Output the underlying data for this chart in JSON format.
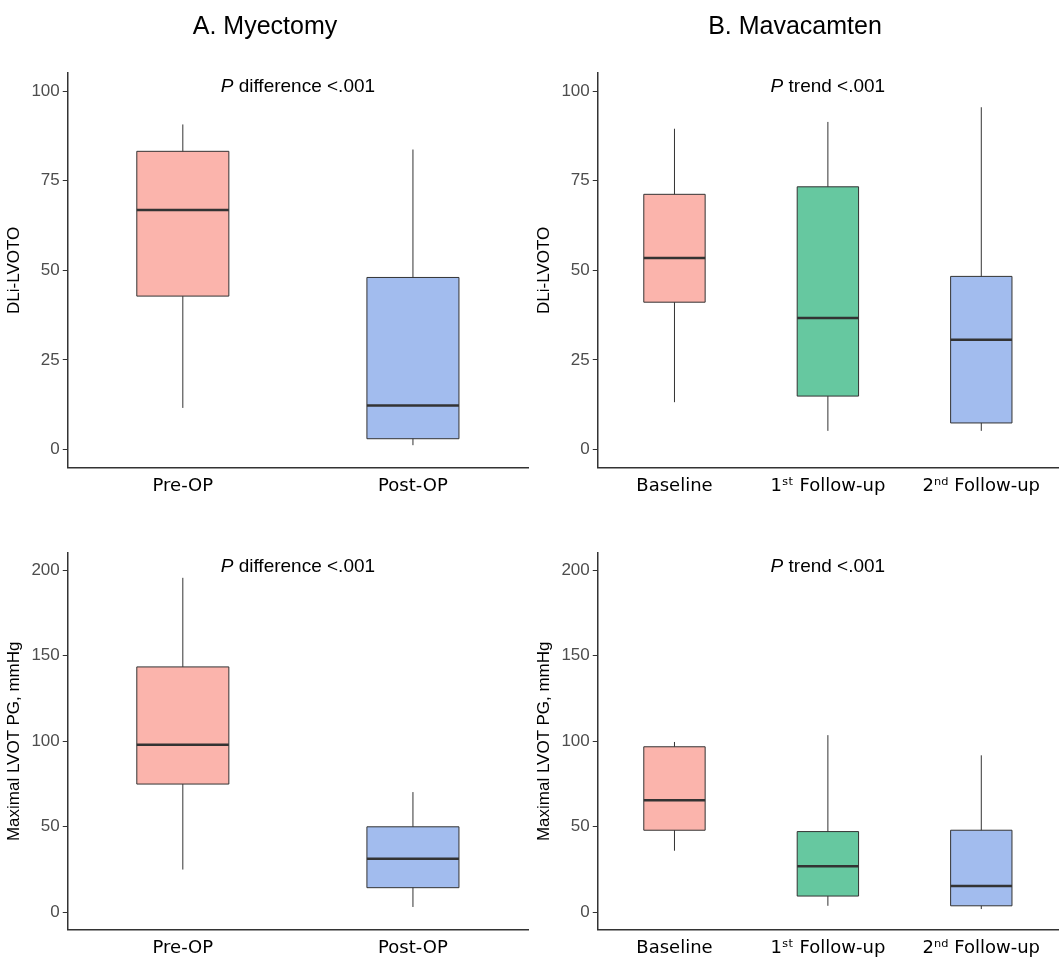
{
  "chart_data": [
    {
      "type": "box",
      "title": "A. Myectomy",
      "ylabel": "DLi-LVOTO",
      "categories": [
        "Pre-OP",
        "Post-OP"
      ],
      "colors": [
        "#fbb4ac",
        "#a2bcee"
      ],
      "ylim": [
        -5,
        105
      ],
      "yticks": [
        0,
        25,
        50,
        75,
        100
      ],
      "annotations": [
        "P difference <.001"
      ],
      "boxes": [
        {
          "low": 11.6,
          "q1": 42.8,
          "median": 66.8,
          "q3": 83.2,
          "high": 90.7
        },
        {
          "low": 1.2,
          "q1": 3,
          "median": 12.3,
          "q3": 48,
          "high": 83.7
        }
      ]
    },
    {
      "type": "box",
      "title": "B. Mavacamten",
      "ylabel": "DLi-LVOTO",
      "categories": [
        "Baseline",
        "1ˢᵗ Follow-up",
        "2ⁿᵈ Follow-up"
      ],
      "colors": [
        "#fbb4ac",
        "#66c8a0",
        "#a2bcee"
      ],
      "ylim": [
        -5,
        105
      ],
      "yticks": [
        0,
        25,
        50,
        75,
        100
      ],
      "annotations": [
        "P trend <.001"
      ],
      "boxes": [
        {
          "low": 13.2,
          "q1": 41.1,
          "median": 53.4,
          "q3": 71.2,
          "high": 89.5
        },
        {
          "low": 5.2,
          "q1": 14.9,
          "median": 36.7,
          "q3": 73.3,
          "high": 91.4
        },
        {
          "low": 5.2,
          "q1": 7.4,
          "median": 30.6,
          "q3": 48.3,
          "high": 95.5
        }
      ]
    },
    {
      "type": "box",
      "ylabel": "Maximal LVOT PG, mmHg",
      "categories": [
        "Pre-OP",
        "Post-OP"
      ],
      "colors": [
        "#fbb4ac",
        "#a2bcee"
      ],
      "ylim": [
        -10,
        210
      ],
      "yticks": [
        0,
        50,
        100,
        150,
        200
      ],
      "annotations": [
        "P difference <.001"
      ],
      "boxes": [
        {
          "low": 25,
          "q1": 75,
          "median": 98,
          "q3": 143.5,
          "high": 195.6
        },
        {
          "low": 3.1,
          "q1": 14.4,
          "median": 31.3,
          "q3": 50,
          "high": 70.3
        }
      ]
    },
    {
      "type": "box",
      "ylabel": "Maximal LVOT PG, mmHg",
      "categories": [
        "Baseline",
        "1ˢᵗ Follow-up",
        "2ⁿᵈ Follow-up"
      ],
      "colors": [
        "#fbb4ac",
        "#66c8a0",
        "#a2bcee"
      ],
      "ylim": [
        -10,
        210
      ],
      "yticks": [
        0,
        50,
        100,
        150,
        200
      ],
      "annotations": [
        "P trend <.001"
      ],
      "boxes": [
        {
          "low": 36,
          "q1": 48,
          "median": 65.5,
          "q3": 96.8,
          "high": 99.6
        },
        {
          "low": 3.8,
          "q1": 9.5,
          "median": 26.9,
          "q3": 47.2,
          "high": 103.6
        },
        {
          "low": 1.9,
          "q1": 3.8,
          "median": 15.4,
          "q3": 48,
          "high": 91.8
        }
      ]
    }
  ]
}
